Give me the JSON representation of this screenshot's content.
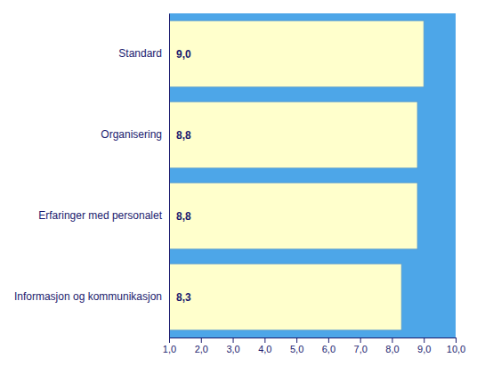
{
  "chart_data": {
    "type": "bar",
    "orientation": "horizontal",
    "categories": [
      "Informasjon og kommunikasjon",
      "Erfaringer med personalet",
      "Organisering",
      "Standard"
    ],
    "values": [
      8.3,
      8.8,
      8.8,
      9.0
    ],
    "value_labels": [
      "8,3",
      "8,8",
      "8,8",
      "9,0"
    ],
    "data_labels": true,
    "color": "#ffffcc",
    "xlim": [
      1.0,
      10.0
    ],
    "xticks": [
      {
        "value": 1.0,
        "label": "1,0"
      },
      {
        "value": 2.0,
        "label": "2,0"
      },
      {
        "value": 3.0,
        "label": "3,0"
      },
      {
        "value": 4.0,
        "label": "4,0"
      },
      {
        "value": 5.0,
        "label": "5,0"
      },
      {
        "value": 6.0,
        "label": "6,0"
      },
      {
        "value": 7.0,
        "label": "7,0"
      },
      {
        "value": 8.0,
        "label": "8,0"
      },
      {
        "value": 9.0,
        "label": "9,0"
      },
      {
        "value": 10.0,
        "label": "10,0"
      }
    ],
    "grid": false
  }
}
